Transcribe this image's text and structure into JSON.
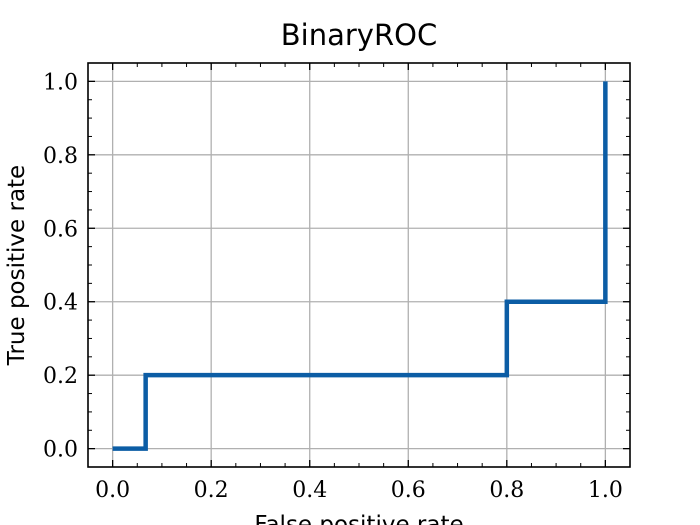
{
  "chart_data": {
    "type": "line",
    "title": "BinaryROC",
    "xlabel": "False positive rate",
    "ylabel": "True positive rate",
    "xlim": [
      -0.05,
      1.05
    ],
    "ylim": [
      -0.05,
      1.05
    ],
    "grid": true,
    "x_ticks": [
      "0.0",
      "0.2",
      "0.4",
      "0.6",
      "0.8",
      "1.0"
    ],
    "y_ticks": [
      "0.0",
      "0.2",
      "0.4",
      "0.6",
      "0.8",
      "1.0"
    ],
    "series": [
      {
        "color": "#0C5DA5",
        "x": [
          0.0,
          0.067,
          0.067,
          0.8,
          0.8,
          1.0,
          1.0
        ],
        "y": [
          0.0,
          0.0,
          0.2,
          0.2,
          0.4,
          0.4,
          1.0
        ]
      }
    ]
  }
}
